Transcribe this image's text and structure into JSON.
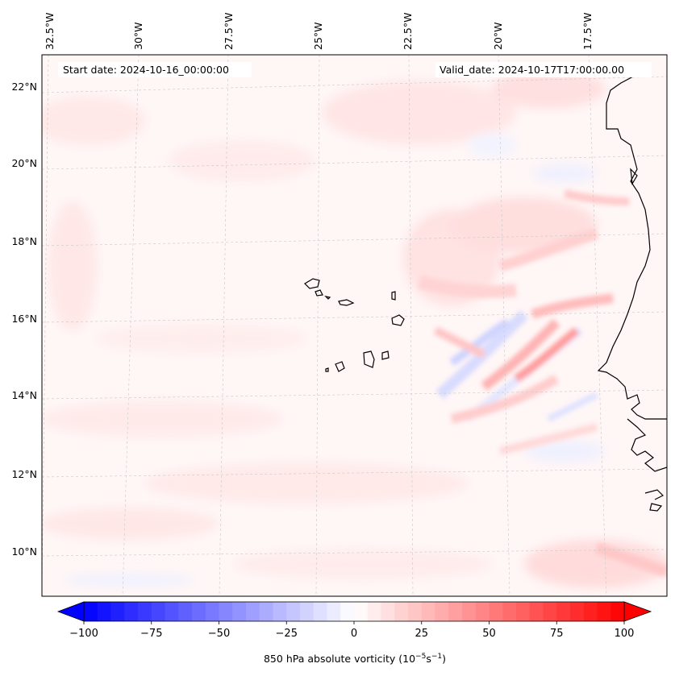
{
  "map": {
    "lon_labels": [
      "32.5°W",
      "30°W",
      "27.5°W",
      "25°W",
      "22.5°W",
      "20°W",
      "17.5°W"
    ],
    "lat_labels": [
      "22°N",
      "20°N",
      "18°N",
      "16°N",
      "14°N",
      "12°N",
      "10°N"
    ],
    "start_date": "Start date: 2024-10-16_00:00:00",
    "valid_date": "Valid_date: 2024-10-17T17:00:00.00",
    "features": [
      "vorticity-contour-field",
      "west-africa-coastline",
      "cape-verde-islands",
      "graticule"
    ]
  },
  "colorbar": {
    "colormap": "bwr",
    "min": -100,
    "max": 100,
    "extend": "both",
    "ticks": [
      "−100",
      "−75",
      "−50",
      "−25",
      "0",
      "25",
      "50",
      "75",
      "100"
    ],
    "label_prefix": "850 hPa absolute vorticity (10",
    "label_exp1": "−5",
    "label_mid": "s",
    "label_exp2": "−1",
    "label_suffix": ")",
    "colors": {
      "negative": "#0000ff",
      "neutral": "#ffffff",
      "positive": "#ff0000"
    }
  }
}
